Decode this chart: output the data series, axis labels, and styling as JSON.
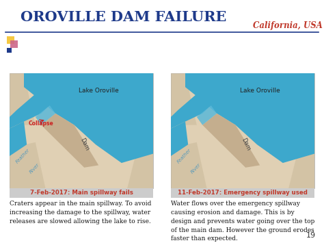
{
  "title": "OROVILLE DAM FAILURE",
  "subtitle": "California, USA",
  "title_color": "#1e3a8a",
  "subtitle_color": "#c0392b",
  "bg_color": "#ffffff",
  "slide_number": "19",
  "caption_left": "7-Feb-2017: Main spillway fails",
  "caption_right": "11-Feb-2017: Emergency spillway used",
  "caption_color": "#c0392b",
  "caption_bg": "#cccccc",
  "text_left": "Craters appear in the main spillway. To avoid\nincreasing the damage to the spillway, water\nreleases are slowed allowing the lake to rise.",
  "text_right": "Water flows over the emergency spillway\ncausing erosion and damage. This is by\ndesign and prevents water going over the top\nof the main dam. However the ground erodes\nfaster than expected.",
  "text_color": "#111111",
  "lake_color": "#3da8cc",
  "dam_color": "#c4ae8e",
  "land_color": "#e0d0b4",
  "land_dark": "#c8b898",
  "river_color": "#3da8cc",
  "spillway_color": "#5ab8d8",
  "collapse_color": "#cc2222",
  "label_lake_color": "#333333",
  "label_dam_color": "#555555",
  "label_river_color": "#5599bb",
  "separator_color": "#1e3a8a",
  "square_yellow": "#f5c842",
  "square_red": "#dd4444",
  "square_pink": "#cc6688",
  "square_blue": "#1e3a8a"
}
